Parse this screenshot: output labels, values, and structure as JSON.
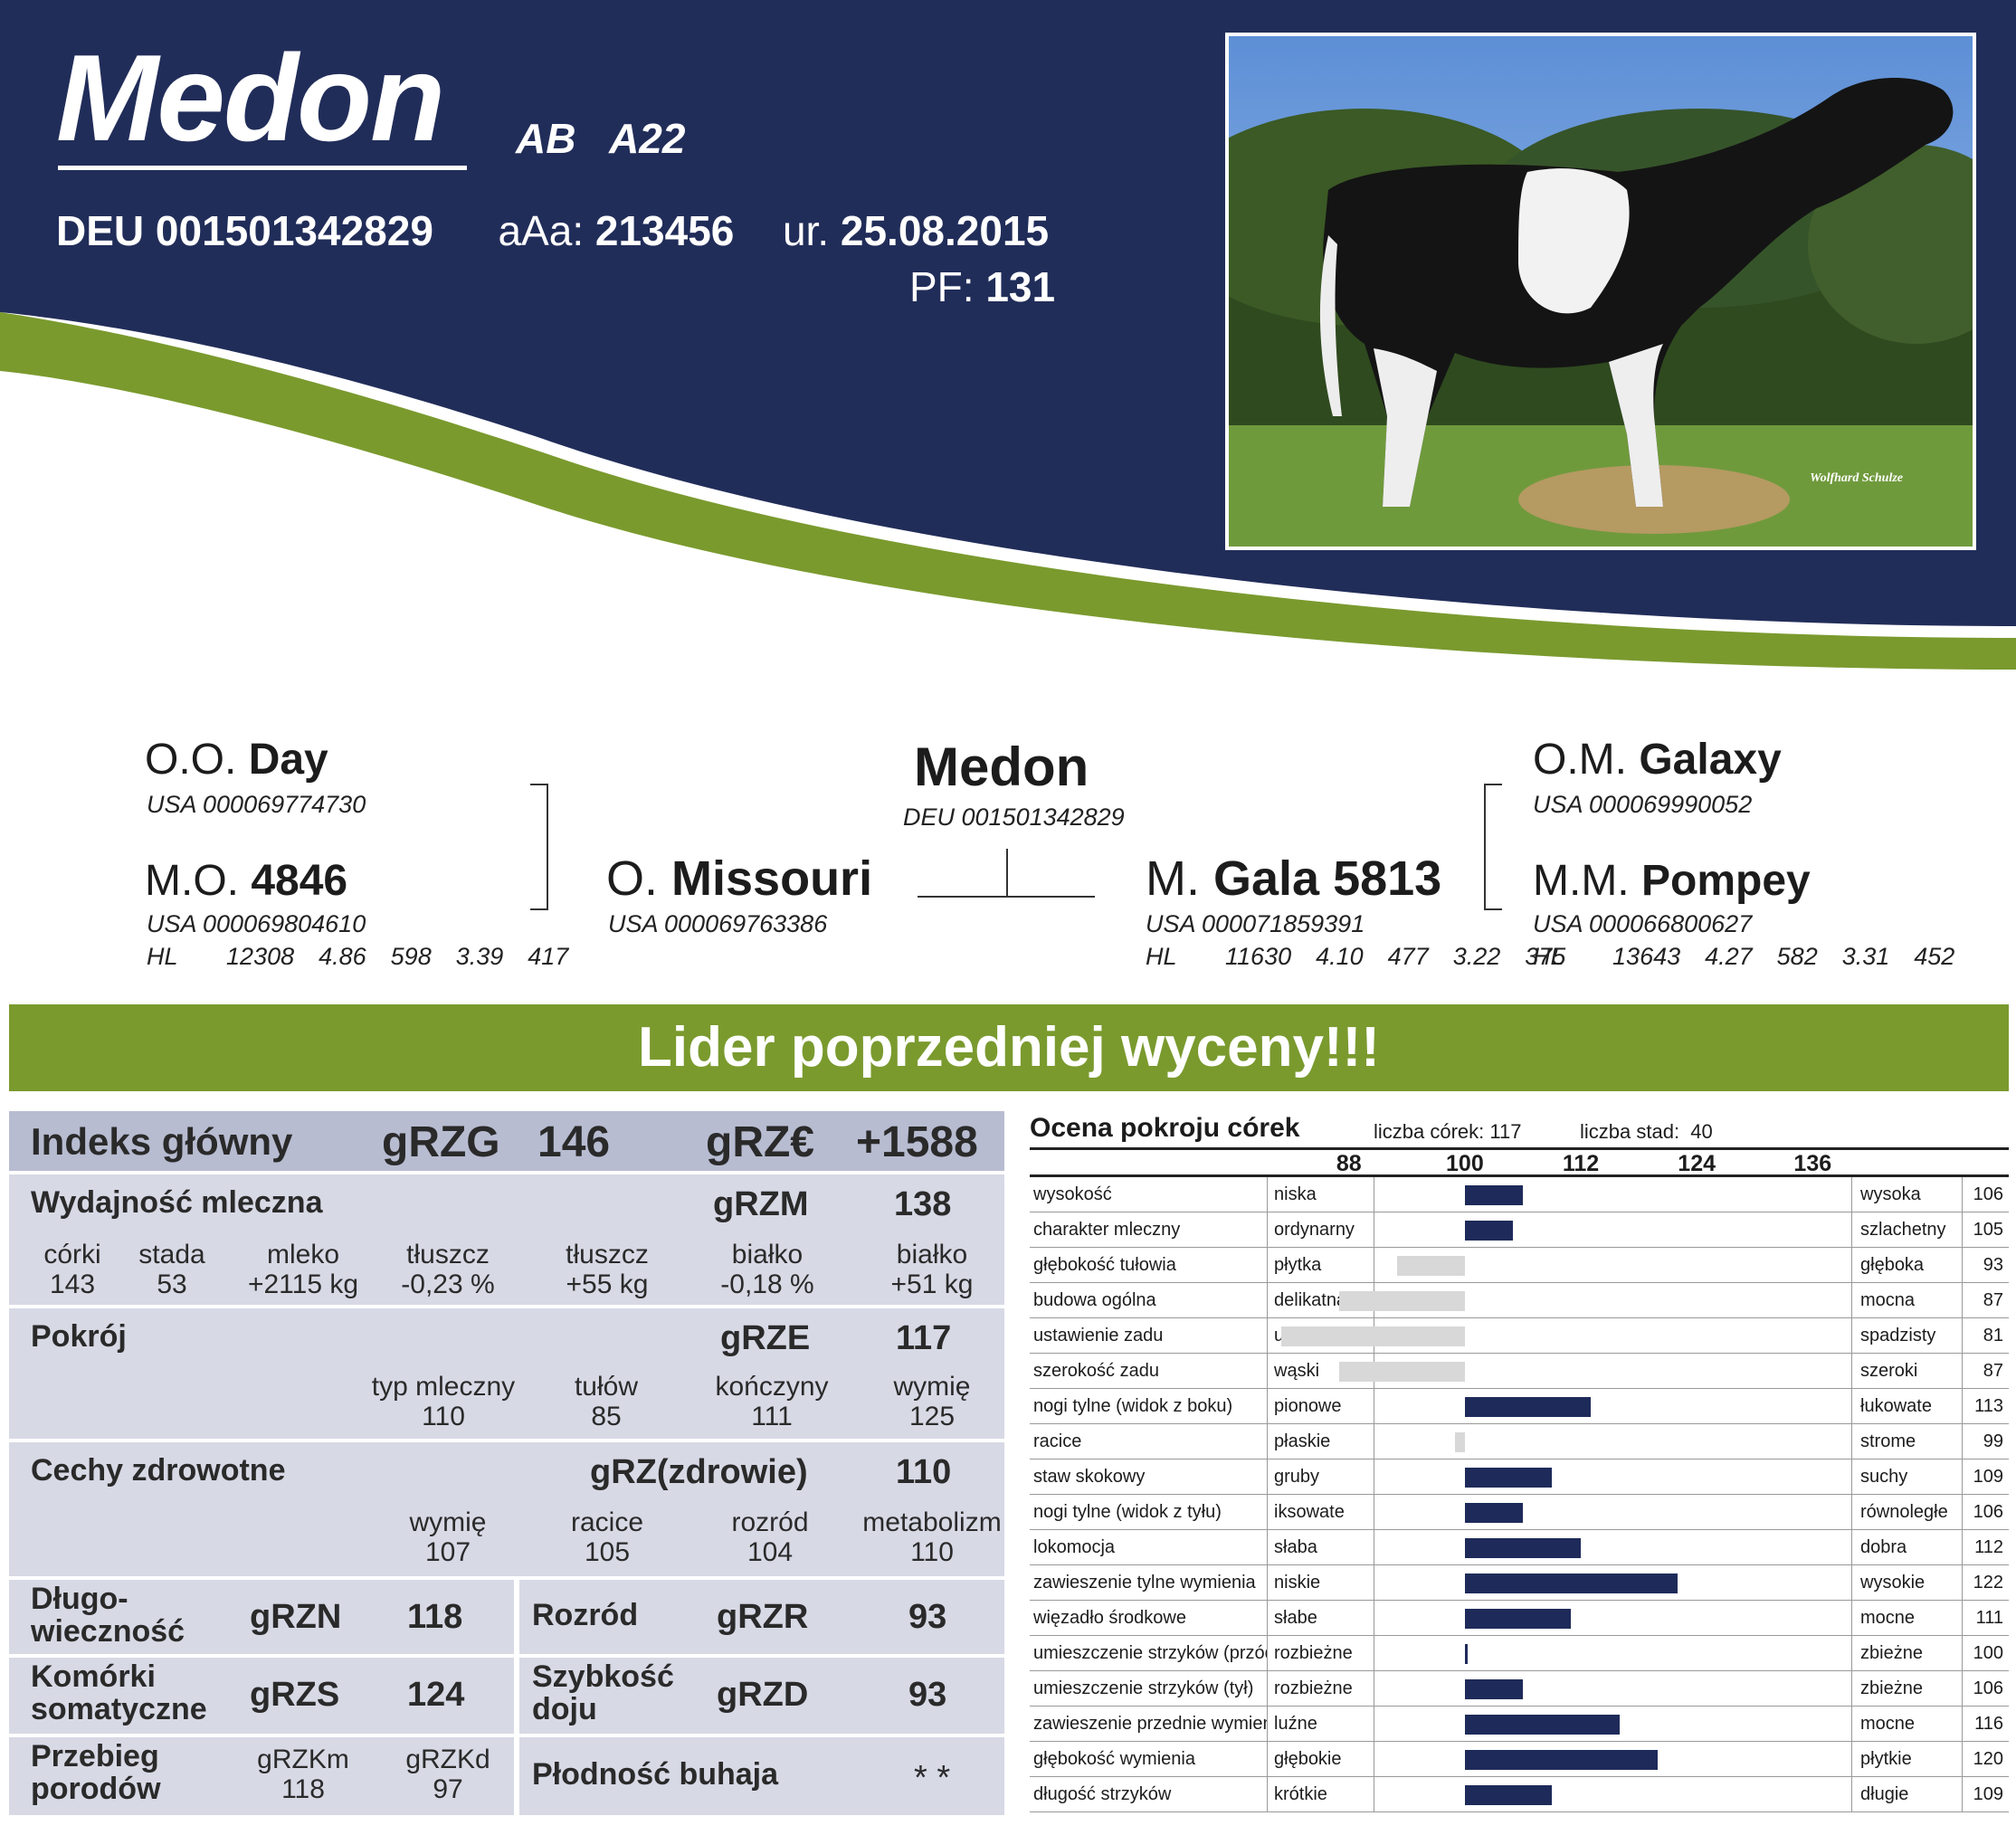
{
  "header": {
    "name": "Medon",
    "genes": "AB   A22",
    "reg_id": "DEU 001501342829",
    "aaa_label": "aAa:",
    "aaa_value": "213456",
    "birth_label": "ur.",
    "birth_value": "25.08.2015",
    "pf_label": "PF:",
    "pf_value": "131",
    "photo_credit": "Wolfhard Schulze",
    "colors": {
      "navy": "#212d59",
      "green": "#7a9a2e"
    }
  },
  "pedigree": {
    "bull": {
      "name": "Medon",
      "code": "DEU 001501342829"
    },
    "sire": {
      "prefix": "O.",
      "name": "Missouri",
      "code": "USA 000069763386"
    },
    "dam": {
      "prefix": "M.",
      "name": "Gala 5813",
      "code": "USA 000071859391",
      "perf": "HL    11630  4.10  477  3.22  375"
    },
    "sire_sire": {
      "prefix": "O.O.",
      "name": "Day",
      "code": "USA 000069774730"
    },
    "sire_dam": {
      "prefix": "M.O.",
      "name": "4846",
      "code": "USA 000069804610",
      "perf": "HL    12308  4.86  598  3.39  417"
    },
    "dam_sire": {
      "prefix": "O.M.",
      "name": "Galaxy",
      "code": "USA 000069990052"
    },
    "dam_dam": {
      "prefix": "M.M.",
      "name": "Pompey",
      "code": "USA 000066800627",
      "perf": "HL    13643  4.27  582  3.31  452"
    }
  },
  "banner": "Lider poprzedniej wyceny!!!",
  "index": {
    "main": {
      "label": "Indeks główny",
      "k1": "gRZG",
      "v1": "146",
      "k2": "gRZ€",
      "v2": "+1588"
    },
    "milk": {
      "label": "Wydajność mleczna",
      "key": "gRZM",
      "value": "138",
      "cols": [
        {
          "h": "córki",
          "v": "143"
        },
        {
          "h": "stada",
          "v": "53"
        },
        {
          "h": "mleko",
          "v": "+2115 kg"
        },
        {
          "h": "tłuszcz",
          "v": "-0,23 %"
        },
        {
          "h": "tłuszcz",
          "v": "+55 kg"
        },
        {
          "h": "białko",
          "v": "-0,18 %"
        },
        {
          "h": "białko",
          "v": "+51 kg"
        }
      ]
    },
    "type": {
      "label": "Pokrój",
      "key": "gRZE",
      "value": "117",
      "cols": [
        {
          "h": "typ mleczny",
          "v": "110"
        },
        {
          "h": "tułów",
          "v": "85"
        },
        {
          "h": "kończyny",
          "v": "111"
        },
        {
          "h": "wymię",
          "v": "125"
        }
      ]
    },
    "health": {
      "label": "Cechy zdrowotne",
      "key": "gRZ(zdrowie)",
      "value": "110",
      "cols": [
        {
          "h": "wymię",
          "v": "107"
        },
        {
          "h": "racice",
          "v": "105"
        },
        {
          "h": "rozród",
          "v": "104"
        },
        {
          "h": "metabolizm",
          "v": "110"
        }
      ]
    },
    "longevity": {
      "label1": "Długo-",
      "label2": "wieczność",
      "key": "gRZN",
      "value": "118"
    },
    "fertility": {
      "label": "Rozród",
      "key": "gRZR",
      "value": "93"
    },
    "scc": {
      "label1": "Komórki",
      "label2": "somatyczne",
      "key": "gRZS",
      "value": "124"
    },
    "milking": {
      "label1": "Szybkość",
      "label2": "doju",
      "key": "gRZD",
      "value": "93"
    },
    "calving": {
      "label1": "Przebieg",
      "label2": "porodów",
      "k1": "gRZKm",
      "v1": "118",
      "k2": "gRZKd",
      "v2": "97"
    },
    "bull_fert": {
      "label": "Płodność buhaja",
      "value": "* *"
    }
  },
  "linear": {
    "title": "Ocena pokroju córek",
    "daughters": "liczba córek: 117",
    "herds": "liczba stad:  40",
    "scale": [
      "88",
      "100",
      "112",
      "124",
      "136"
    ],
    "traits": [
      {
        "name": "wysokość",
        "low": "niska",
        "high": "wysoka",
        "value": 106
      },
      {
        "name": "charakter mleczny",
        "low": "ordynarny",
        "high": "szlachetny",
        "value": 105
      },
      {
        "name": "głębokość tułowia",
        "low": "płytka",
        "high": "głęboka",
        "value": 93
      },
      {
        "name": "budowa ogólna",
        "low": "delikatna",
        "high": "mocna",
        "value": 87
      },
      {
        "name": "ustawienie zadu",
        "low": "uniesiony",
        "high": "spadzisty",
        "value": 81
      },
      {
        "name": "szerokość zadu",
        "low": "wąski",
        "high": "szeroki",
        "value": 87
      },
      {
        "name": "nogi tylne (widok z boku)",
        "low": "pionowe",
        "high": "łukowate",
        "value": 113
      },
      {
        "name": "racice",
        "low": "płaskie",
        "high": "strome",
        "value": 99
      },
      {
        "name": "staw skokowy",
        "low": "gruby",
        "high": "suchy",
        "value": 109
      },
      {
        "name": "nogi tylne (widok z tyłu)",
        "low": "iksowate",
        "high": "równoległe",
        "value": 106
      },
      {
        "name": "lokomocja",
        "low": "słaba",
        "high": "dobra",
        "value": 112
      },
      {
        "name": "zawieszenie tylne wymienia",
        "low": "niskie",
        "high": "wysokie",
        "value": 122
      },
      {
        "name": "więzadło środkowe",
        "low": "słabe",
        "high": "mocne",
        "value": 111
      },
      {
        "name": "umieszczenie strzyków (przód)",
        "low": "rozbieżne",
        "high": "zbieżne",
        "value": 100
      },
      {
        "name": "umieszczenie strzyków (tył)",
        "low": "rozbieżne",
        "high": "zbieżne",
        "value": 106
      },
      {
        "name": "zawieszenie przednie wymienia",
        "low": "luźne",
        "high": "mocne",
        "value": 116
      },
      {
        "name": "głębokość wymienia",
        "low": "głębokie",
        "high": "płytkie",
        "value": 120
      },
      {
        "name": "długość strzyków",
        "low": "krótkie",
        "high": "długie",
        "value": 109
      }
    ]
  }
}
